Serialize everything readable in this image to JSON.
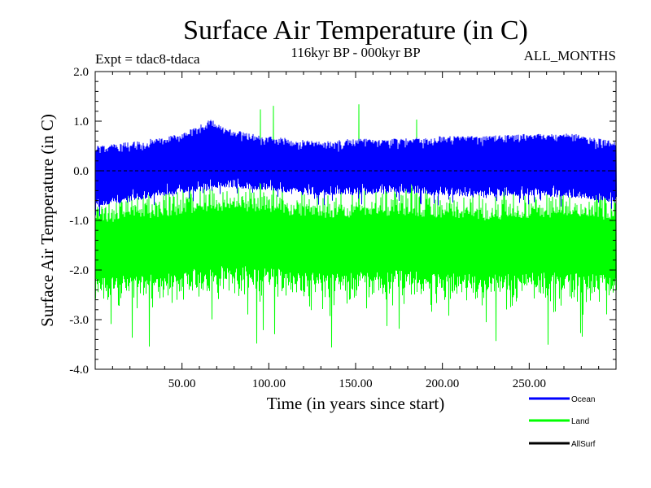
{
  "chart_data": {
    "type": "line",
    "title": "Surface Air Temperature (in C)",
    "experiment_label": "Expt = tdac8-tdaca",
    "period_label": "116kyr BP - 000kyr BP",
    "months_label": "ALL_MONTHS",
    "xlabel": "Time (in years since start)",
    "ylabel": "Surface Air Temperature (in C)",
    "xlim": [
      0,
      300
    ],
    "ylim": [
      -4.0,
      2.0
    ],
    "x_ticks": [
      50,
      100,
      150,
      200,
      250
    ],
    "x_tick_labels": [
      "50.00",
      "100.00",
      "150.00",
      "200.00",
      "250.00"
    ],
    "y_ticks": [
      -4,
      -3,
      -2,
      -1,
      0,
      1,
      2
    ],
    "y_tick_labels": [
      "-4.0",
      "-3.0",
      "-2.0",
      "-1.0",
      "0.0",
      "1.0",
      "2.0"
    ],
    "legend_position": "bottom-right",
    "series": [
      {
        "name": "Ocean",
        "color": "#0000ff",
        "bottom_envelope_x": [
          0,
          25,
          50,
          75,
          100,
          125,
          150,
          175,
          200,
          225,
          250,
          275,
          300
        ],
        "bottom_envelope": [
          -0.75,
          -0.6,
          -0.45,
          -0.35,
          -0.4,
          -0.5,
          -0.5,
          -0.45,
          -0.5,
          -0.55,
          -0.5,
          -0.55,
          -0.65
        ],
        "top_envelope_x": [
          0,
          25,
          50,
          67,
          75,
          100,
          125,
          150,
          175,
          200,
          225,
          250,
          275,
          300
        ],
        "top_envelope": [
          0.5,
          0.6,
          0.75,
          1.05,
          0.85,
          0.7,
          0.6,
          0.65,
          0.65,
          0.7,
          0.7,
          0.75,
          0.75,
          0.6
        ],
        "mean": 0.1
      },
      {
        "name": "Land",
        "color": "#00ff00",
        "mean": -1.5,
        "min": -3.6,
        "max": 1.55,
        "mean_x": [
          0,
          25,
          50,
          75,
          100,
          125,
          150,
          175,
          200,
          225,
          250,
          275,
          300
        ],
        "mean_values": [
          -1.6,
          -1.55,
          -1.45,
          -1.35,
          -1.4,
          -1.5,
          -1.5,
          -1.45,
          -1.5,
          -1.55,
          -1.5,
          -1.5,
          -1.55
        ]
      },
      {
        "name": "AllSurf",
        "color": "#000000",
        "values_x": [
          0,
          300
        ],
        "values": [
          0.0,
          0.0
        ]
      }
    ]
  }
}
